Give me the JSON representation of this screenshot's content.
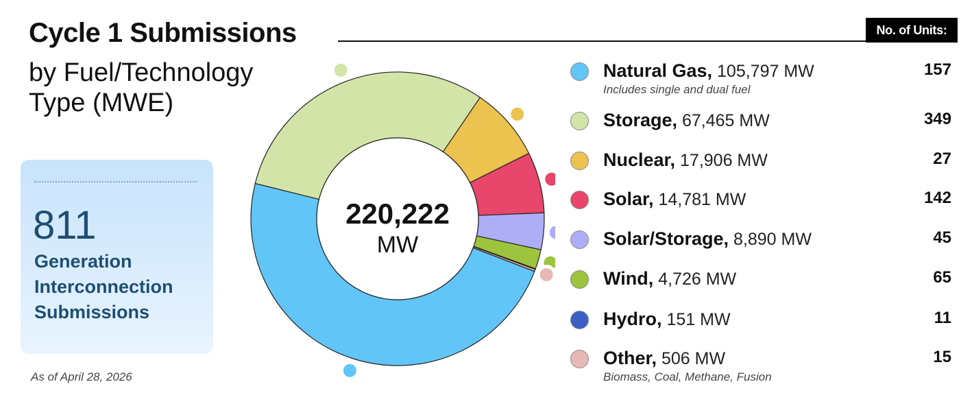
{
  "title": "Cycle 1 Submissions",
  "subtitle": "by Fuel/Technology Type (MWE)",
  "units_header": "No. of Units:",
  "stat_card": {
    "number": "811",
    "label": "Generation Interconnection Submissions"
  },
  "as_of": "As of April 28, 2026",
  "chart_data": {
    "type": "pie",
    "center_value": "220,222",
    "center_unit": "MW",
    "total": 220222,
    "categories": [
      {
        "name": "Natural Gas",
        "value": 105797,
        "mw_label": "105,797 MW",
        "note": "Includes single and dual fuel",
        "units": "157",
        "color": "#62c5f7"
      },
      {
        "name": "Storage",
        "value": 67465,
        "mw_label": "67,465 MW",
        "note": "",
        "units": "349",
        "color": "#d3e4a8"
      },
      {
        "name": "Nuclear",
        "value": 17906,
        "mw_label": "17,906 MW",
        "note": "",
        "units": "27",
        "color": "#ecc34f"
      },
      {
        "name": "Solar",
        "value": 14781,
        "mw_label": "14,781 MW",
        "note": "",
        "units": "142",
        "color": "#e8466b"
      },
      {
        "name": "Solar/Storage",
        "value": 8890,
        "mw_label": "8,890 MW",
        "note": "",
        "units": "45",
        "color": "#aeaef7"
      },
      {
        "name": "Wind",
        "value": 4726,
        "mw_label": "4,726 MW",
        "note": "",
        "units": "65",
        "color": "#9cc43e"
      },
      {
        "name": "Hydro",
        "value": 151,
        "mw_label": "151 MW",
        "note": "",
        "units": "11",
        "color": "#3b5fc4"
      },
      {
        "name": "Other",
        "value": 506,
        "mw_label": "506 MW",
        "note": "Biomass, Coal, Methane, Fusion",
        "units": "15",
        "color": "#e7b8b5"
      }
    ]
  }
}
